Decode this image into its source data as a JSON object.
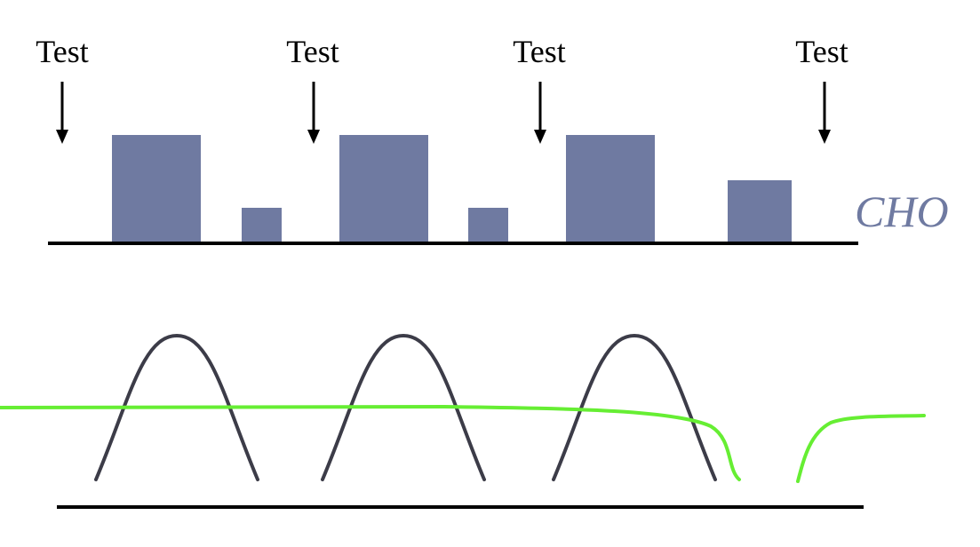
{
  "colors": {
    "background": "#ffffff",
    "bar_fill": "#6f7aa1",
    "baseline": "#000000",
    "arrow": "#000000",
    "peak_curve": "#3c3c48",
    "green_curve": "#66ee33",
    "cho_text": "#6f7aa1"
  },
  "tests": [
    {
      "label": "Test"
    },
    {
      "label": "Test"
    },
    {
      "label": "Test"
    },
    {
      "label": "Test"
    }
  ],
  "cho": {
    "label": "CHO"
  }
}
